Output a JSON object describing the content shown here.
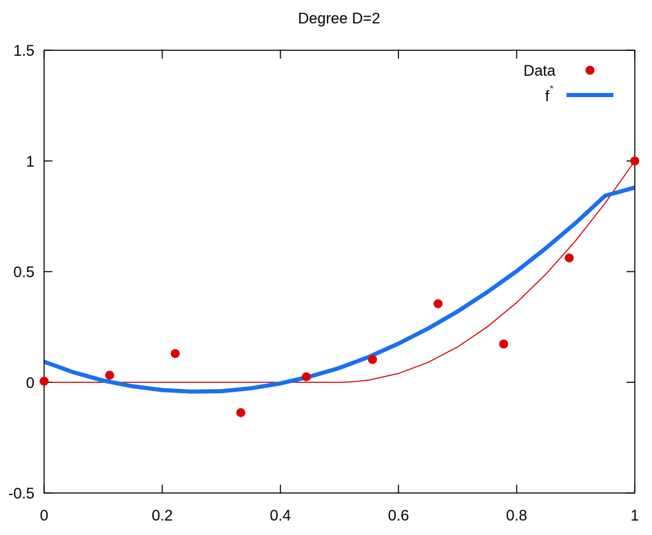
{
  "chart_data": {
    "type": "scatter",
    "title": "Degree D=2",
    "xlabel": "",
    "ylabel": "",
    "xlim": [
      0,
      1
    ],
    "ylim": [
      -0.5,
      1.5
    ],
    "xticks": [
      "0",
      "0.2",
      "0.4",
      "0.6",
      "0.8",
      "1"
    ],
    "xtick_values": [
      0,
      0.2,
      0.4,
      0.6,
      0.8,
      1
    ],
    "yticks": [
      "-0.5",
      "0",
      "0.5",
      "1",
      "1.5"
    ],
    "ytick_values": [
      -0.5,
      0,
      0.5,
      1,
      1.5
    ],
    "grid": false,
    "legend_position": "top-right",
    "colors": {
      "data": "#e00000",
      "fit": "#1a6ff2",
      "true_curve": "#d40000"
    },
    "series": [
      {
        "name": "Data",
        "kind": "points",
        "x": [
          0,
          0.111,
          0.222,
          0.333,
          0.444,
          0.556,
          0.667,
          0.778,
          0.889,
          1.0
        ],
        "y": [
          0.005,
          0.032,
          0.13,
          -0.137,
          0.025,
          0.103,
          0.355,
          0.173,
          0.562,
          1.0
        ]
      },
      {
        "name": "f",
        "name_superscript": "*",
        "kind": "line",
        "x": [
          0,
          0.05,
          0.1,
          0.15,
          0.2,
          0.25,
          0.3,
          0.35,
          0.4,
          0.45,
          0.5,
          0.55,
          0.6,
          0.65,
          0.7,
          0.75,
          0.8,
          0.85,
          0.9,
          0.95,
          1.0
        ],
        "y": [
          0.093,
          0.045,
          0.008,
          -0.018,
          -0.035,
          -0.042,
          -0.04,
          -0.027,
          -0.005,
          0.026,
          0.065,
          0.115,
          0.175,
          0.243,
          0.32,
          0.407,
          0.502,
          0.607,
          0.72,
          0.843,
          0.88
        ]
      },
      {
        "kind": "line",
        "x": [
          0,
          0.1,
          0.2,
          0.3,
          0.4,
          0.5,
          0.52,
          0.55,
          0.6,
          0.65,
          0.7,
          0.75,
          0.8,
          0.85,
          0.9,
          0.95,
          1.0
        ],
        "y": [
          0,
          0,
          0,
          0,
          0,
          0,
          0.002,
          0.01,
          0.04,
          0.09,
          0.16,
          0.25,
          0.36,
          0.49,
          0.64,
          0.81,
          1.0
        ]
      }
    ]
  }
}
